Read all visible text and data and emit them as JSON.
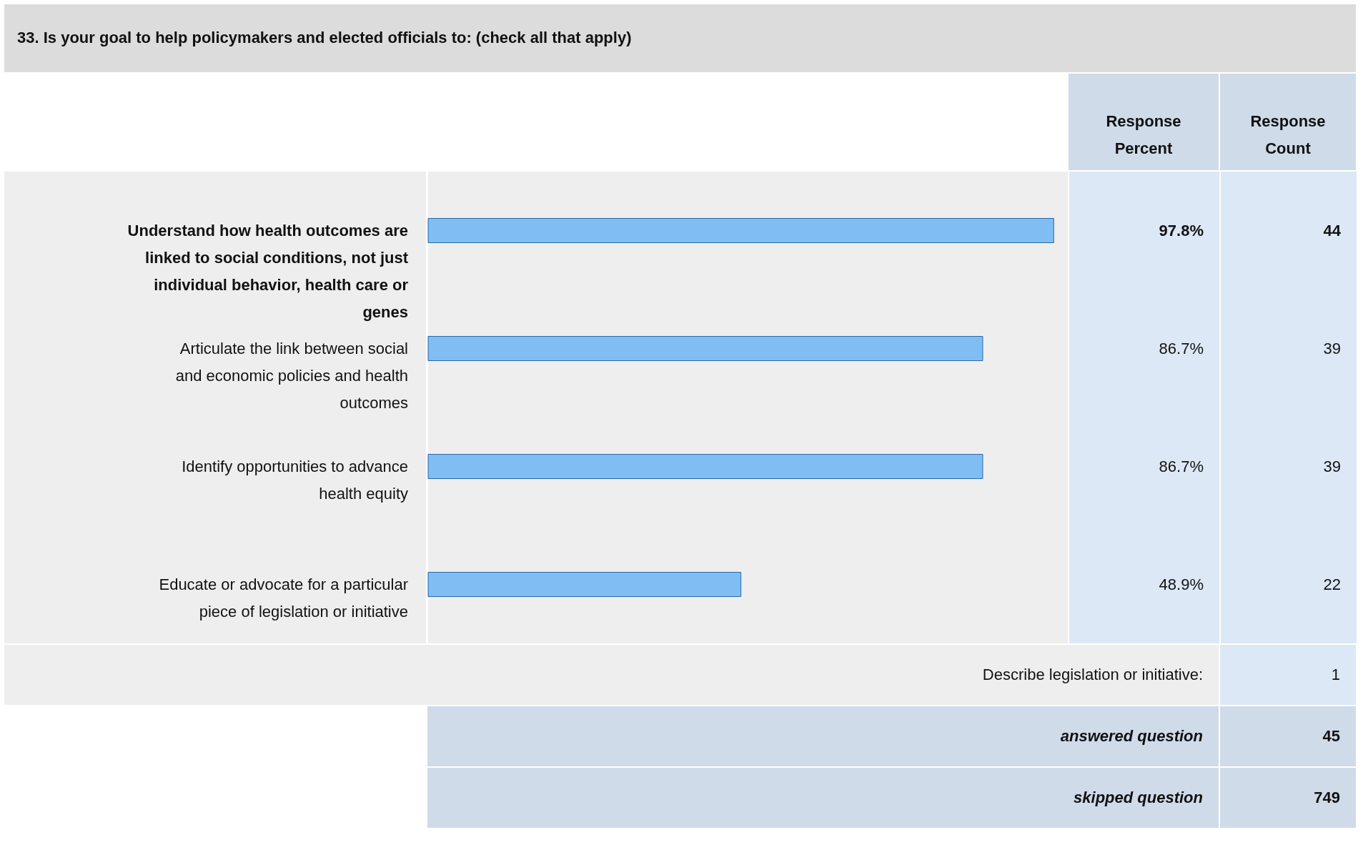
{
  "chart_data": {
    "type": "bar",
    "orientation": "horizontal",
    "title": "33. Is your goal to help policymakers and elected officials to: (check all that apply)",
    "categories": [
      "Understand how health outcomes are linked to social conditions, not just individual behavior, health care or genes",
      "Articulate the link between social and economic policies and health outcomes",
      "Identify opportunities to advance health equity",
      "Educate or advocate for a particular piece of legislation or initiative"
    ],
    "values": [
      97.8,
      86.7,
      86.7,
      48.9
    ],
    "value_labels": [
      "97.8%",
      "86.7%",
      "86.7%",
      "48.9%"
    ],
    "color": "#7fbdf2",
    "xlim": [
      0,
      100
    ],
    "tick_labels": false,
    "annotations": [
      "Response Percent",
      "Response Count",
      "44",
      "39",
      "39",
      "22",
      "Describe legislation or initiative:",
      "1",
      "answered question",
      "45",
      "skipped question",
      "749"
    ]
  }
}
